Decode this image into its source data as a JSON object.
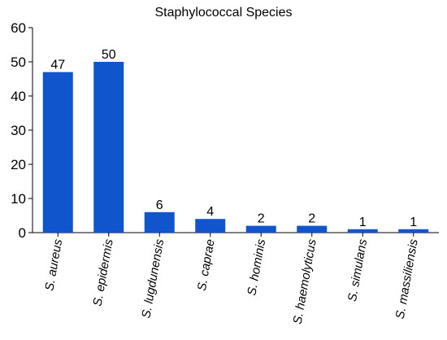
{
  "chart_data": {
    "type": "bar",
    "title": "Staphylococcal Species",
    "xlabel": "",
    "ylabel": "",
    "categories": [
      "S. aureus",
      "S. epidermis",
      "S. lugdunensis",
      "S. caprae",
      "S. hominis",
      "S. haemolyticus",
      "S. simulans",
      "S. massiliensis"
    ],
    "values": [
      47,
      50,
      6,
      4,
      2,
      2,
      1,
      1
    ],
    "data_labels": [
      "47",
      "50",
      "6",
      "4",
      "2",
      "2",
      "1",
      "1"
    ],
    "ylim": [
      0,
      60
    ],
    "yticks": [
      0,
      10,
      20,
      30,
      40,
      50,
      60
    ],
    "ytick_labels": [
      "0",
      "10",
      "20",
      "30",
      "40",
      "50",
      "60"
    ],
    "grid": false,
    "legend": "none",
    "bar_color": "#1155cc"
  }
}
